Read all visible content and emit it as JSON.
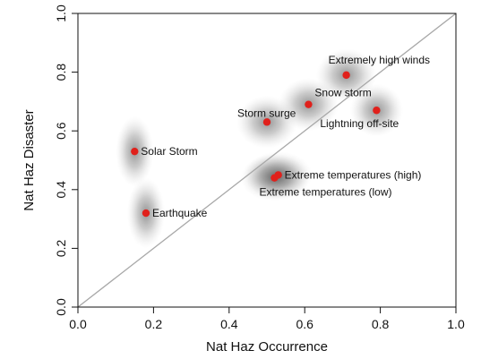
{
  "chart_data": {
    "type": "scatter",
    "xlabel": "Nat Haz Occurrence",
    "ylabel": "Nat Haz Disaster",
    "xlim": [
      0.0,
      1.0
    ],
    "ylim": [
      0.0,
      1.0
    ],
    "xticks": [
      "0.0",
      "0.2",
      "0.4",
      "0.6",
      "0.8",
      "1.0"
    ],
    "yticks": [
      "0.0",
      "0.2",
      "0.4",
      "0.6",
      "0.8",
      "1.0"
    ],
    "grid": false,
    "reference_line": "diagonal y = x",
    "point_color": "#e0201b",
    "line_color": "#a8a8a8",
    "points": [
      {
        "label": "Solar Storm",
        "x": 0.15,
        "y": 0.53,
        "sx": 0.05,
        "sy": 0.12,
        "label_pos": "right"
      },
      {
        "label": "Earthquake",
        "x": 0.18,
        "y": 0.32,
        "sx": 0.05,
        "sy": 0.12,
        "label_pos": "right"
      },
      {
        "label": "Storm surge",
        "x": 0.5,
        "y": 0.63,
        "sx": 0.08,
        "sy": 0.09,
        "label_pos": "left-above"
      },
      {
        "label": "Snow storm",
        "x": 0.61,
        "y": 0.69,
        "sx": 0.08,
        "sy": 0.09,
        "label_pos": "right-above"
      },
      {
        "label": "Extremely high winds",
        "x": 0.71,
        "y": 0.79,
        "sx": 0.08,
        "sy": 0.09,
        "label_pos": "right-above"
      },
      {
        "label": "Lightning off-site",
        "x": 0.79,
        "y": 0.67,
        "sx": 0.07,
        "sy": 0.09,
        "label_pos": "below"
      },
      {
        "label": "Extreme temperatures (high)",
        "x": 0.53,
        "y": 0.45,
        "sx": 0.09,
        "sy": 0.08,
        "label_pos": "right"
      },
      {
        "label": "Extreme temperatures (low)",
        "x": 0.52,
        "y": 0.44,
        "sx": 0.09,
        "sy": 0.08,
        "label_pos": "right-below"
      }
    ]
  }
}
